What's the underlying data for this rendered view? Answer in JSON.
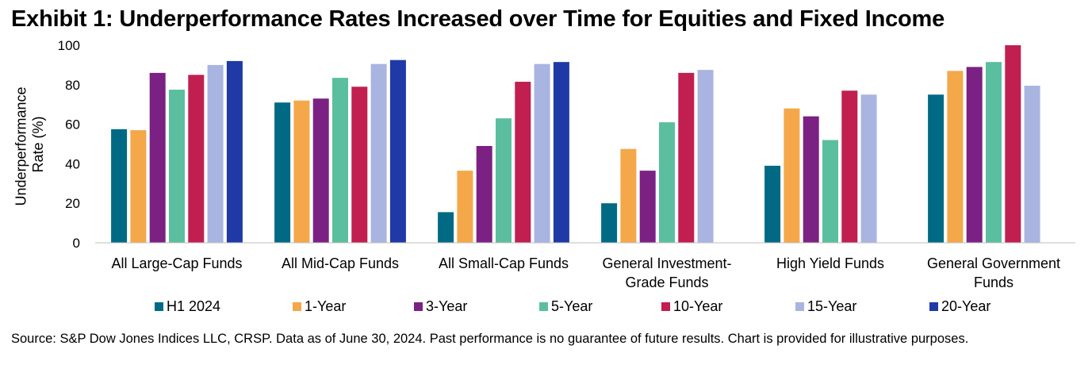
{
  "title": "Exhibit 1: Underperformance Rates Increased over Time for Equities and Fixed Income",
  "source": "Source: S&P Dow Jones Indices LLC, CRSP.  Data as of June 30, 2024.  Past performance is no guarantee of future results.  Chart is provided for illustrative purposes.",
  "chart_data": {
    "type": "bar",
    "ylabel": "Underperformance Rate (%)",
    "ylim": [
      0,
      100
    ],
    "yticks": [
      0,
      20,
      40,
      60,
      80,
      100
    ],
    "grid": false,
    "legend_position": "bottom",
    "categories": [
      [
        "All Large-Cap Funds"
      ],
      [
        "All Mid-Cap Funds"
      ],
      [
        "All Small-Cap Funds"
      ],
      [
        "General Investment-",
        "Grade Funds"
      ],
      [
        "High Yield Funds"
      ],
      [
        "General Government",
        "Funds"
      ]
    ],
    "series": [
      {
        "name": "H1 2024",
        "color": "#006a85",
        "values": [
          57.5,
          71,
          15.5,
          20,
          39,
          75
        ]
      },
      {
        "name": "1-Year",
        "color": "#f4a84a",
        "values": [
          57,
          72,
          36.5,
          47.5,
          68,
          87
        ]
      },
      {
        "name": "3-Year",
        "color": "#7b2183",
        "values": [
          86,
          73,
          49,
          36.5,
          64,
          89
        ]
      },
      {
        "name": "5-Year",
        "color": "#5bbf9f",
        "values": [
          77.5,
          83.5,
          63,
          61,
          52,
          91.5
        ]
      },
      {
        "name": "10-Year",
        "color": "#c01f50",
        "values": [
          85,
          79,
          81.5,
          86,
          77,
          100
        ]
      },
      {
        "name": "15-Year",
        "color": "#a9b4e1",
        "values": [
          90,
          90.5,
          90.5,
          87.5,
          75,
          79.5
        ]
      },
      {
        "name": "20-Year",
        "color": "#1f3aa6",
        "values": [
          92,
          92.5,
          91.5,
          null,
          null,
          null
        ]
      }
    ]
  }
}
